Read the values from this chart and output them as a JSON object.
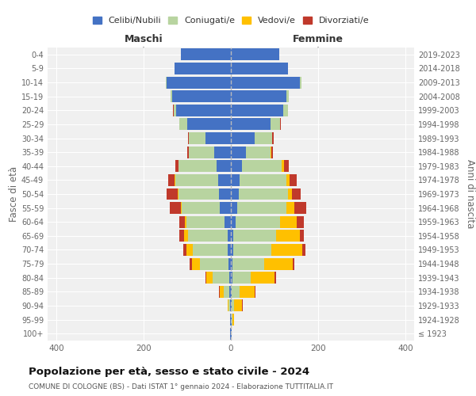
{
  "age_groups": [
    "100+",
    "95-99",
    "90-94",
    "85-89",
    "80-84",
    "75-79",
    "70-74",
    "65-69",
    "60-64",
    "55-59",
    "50-54",
    "45-49",
    "40-44",
    "35-39",
    "30-34",
    "25-29",
    "20-24",
    "15-19",
    "10-14",
    "5-9",
    "0-4"
  ],
  "birth_years": [
    "≤ 1923",
    "1924-1928",
    "1929-1933",
    "1934-1938",
    "1939-1943",
    "1944-1948",
    "1949-1953",
    "1954-1958",
    "1959-1963",
    "1964-1968",
    "1969-1973",
    "1974-1978",
    "1979-1983",
    "1984-1988",
    "1989-1993",
    "1994-1998",
    "1999-2003",
    "2004-2008",
    "2009-2013",
    "2014-2018",
    "2019-2023"
  ],
  "maschi": {
    "celibi": [
      1,
      1,
      2,
      3,
      4,
      6,
      7,
      8,
      14,
      25,
      28,
      30,
      32,
      38,
      58,
      100,
      125,
      135,
      148,
      130,
      115
    ],
    "coniugati": [
      0,
      1,
      4,
      14,
      38,
      65,
      80,
      90,
      88,
      88,
      92,
      98,
      88,
      58,
      38,
      18,
      6,
      4,
      2,
      0,
      0
    ],
    "vedovi": [
      0,
      0,
      2,
      8,
      14,
      18,
      14,
      10,
      4,
      2,
      2,
      1,
      0,
      0,
      0,
      0,
      0,
      0,
      0,
      0,
      0
    ],
    "divorziati": [
      0,
      0,
      0,
      2,
      3,
      5,
      8,
      10,
      12,
      25,
      25,
      15,
      8,
      4,
      2,
      1,
      1,
      0,
      0,
      0,
      0
    ]
  },
  "femmine": {
    "nubili": [
      1,
      1,
      2,
      2,
      3,
      4,
      5,
      6,
      10,
      15,
      18,
      20,
      25,
      35,
      55,
      90,
      120,
      128,
      158,
      130,
      110
    ],
    "coniugate": [
      0,
      2,
      6,
      18,
      42,
      72,
      88,
      98,
      102,
      112,
      112,
      108,
      92,
      55,
      40,
      22,
      10,
      5,
      3,
      0,
      0
    ],
    "vedove": [
      1,
      4,
      18,
      35,
      55,
      65,
      70,
      55,
      38,
      18,
      10,
      7,
      4,
      2,
      0,
      0,
      0,
      0,
      0,
      0,
      0
    ],
    "divorziate": [
      0,
      0,
      1,
      2,
      4,
      5,
      8,
      8,
      18,
      28,
      20,
      15,
      12,
      4,
      4,
      2,
      1,
      0,
      0,
      0,
      0
    ]
  },
  "colors": {
    "celibi": "#4472c4",
    "coniugati": "#b8d4a0",
    "vedovi": "#ffc000",
    "divorziati": "#c0392b"
  },
  "xlim": 420,
  "title": "Popolazione per età, sesso e stato civile - 2024",
  "subtitle": "COMUNE DI COLOGNE (BS) - Dati ISTAT 1° gennaio 2024 - Elaborazione TUTTITALIA.IT",
  "ylabel_left": "Fasce di età",
  "ylabel_right": "Anni di nascita",
  "xlabel_maschi": "Maschi",
  "xlabel_femmine": "Femmine",
  "bg_color": "#ffffff",
  "plot_bg": "#f0f0f0",
  "grid_color": "#ffffff",
  "legend_labels": [
    "Celibi/Nubili",
    "Coniugati/e",
    "Vedovi/e",
    "Divorziati/e"
  ]
}
